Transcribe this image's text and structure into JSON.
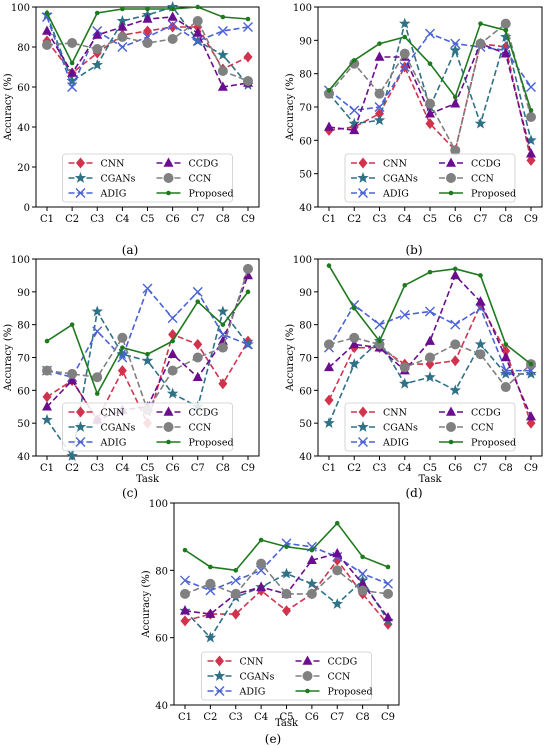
{
  "chart_data": [
    {
      "type": "line",
      "panel_label": "(a)",
      "xlabel": "",
      "ylabel": "Accuracy (%)",
      "ylim": [
        0,
        100
      ],
      "yticks": [
        0,
        20,
        40,
        60,
        80,
        100
      ],
      "categories": [
        "C1",
        "C2",
        "C3",
        "C4",
        "C5",
        "C6",
        "C7",
        "C8",
        "C9"
      ],
      "legend_position": "lower-center",
      "series": [
        {
          "name": "CNN",
          "values": [
            83,
            67,
            77,
            86,
            88,
            90,
            90,
            69,
            75
          ]
        },
        {
          "name": "CGANs",
          "values": [
            96,
            63,
            71,
            93,
            96,
            100,
            83,
            76,
            61
          ]
        },
        {
          "name": "ADIG",
          "values": [
            95,
            60,
            88,
            80,
            85,
            91,
            83,
            88,
            90
          ]
        },
        {
          "name": "CCDG",
          "values": [
            88,
            67,
            86,
            90,
            94,
            95,
            87,
            60,
            62
          ]
        },
        {
          "name": "CCN",
          "values": [
            81,
            82,
            79,
            85,
            82,
            84,
            93,
            68,
            63
          ]
        },
        {
          "name": "Proposed",
          "values": [
            97,
            72,
            97,
            99,
            99,
            99,
            100,
            95,
            94
          ]
        }
      ]
    },
    {
      "type": "line",
      "panel_label": "(b)",
      "xlabel": "",
      "ylabel": "Accuracy (%)",
      "ylim": [
        40,
        100
      ],
      "yticks": [
        40,
        50,
        60,
        70,
        80,
        90,
        100
      ],
      "categories": [
        "C1",
        "C2",
        "C3",
        "C4",
        "C5",
        "C6",
        "C7",
        "C8",
        "C9"
      ],
      "legend_position": "lower-center",
      "series": [
        {
          "name": "CNN",
          "values": [
            63,
            64,
            68,
            82,
            65,
            57,
            89,
            88,
            54
          ]
        },
        {
          "name": "CGANs",
          "values": [
            74,
            65,
            66,
            95,
            70,
            87,
            65,
            91,
            60
          ]
        },
        {
          "name": "ADIG",
          "values": [
            75,
            69,
            70,
            82,
            92,
            89,
            88,
            87,
            76
          ]
        },
        {
          "name": "CCDG",
          "values": [
            64,
            63,
            85,
            85,
            68,
            71,
            89,
            86,
            56
          ]
        },
        {
          "name": "CCN",
          "values": [
            74,
            83,
            74,
            86,
            71,
            57,
            89,
            95,
            67
          ]
        },
        {
          "name": "Proposed",
          "values": [
            75,
            84,
            89,
            91,
            83,
            73,
            95,
            93,
            69
          ]
        }
      ]
    },
    {
      "type": "line",
      "panel_label": "(c)",
      "xlabel": "Task",
      "ylabel": "Accuracy (%)",
      "ylim": [
        40,
        100
      ],
      "yticks": [
        40,
        50,
        60,
        70,
        80,
        90,
        100
      ],
      "categories": [
        "C1",
        "C2",
        "C3",
        "C4",
        "C5",
        "C6",
        "C7",
        "C8",
        "C9"
      ],
      "legend_position": "lower-center",
      "series": [
        {
          "name": "CNN",
          "values": [
            58,
            63,
            51,
            66,
            50,
            77,
            74,
            62,
            75
          ]
        },
        {
          "name": "CGANs",
          "values": [
            51,
            40,
            84,
            71,
            69,
            59,
            55,
            84,
            74
          ]
        },
        {
          "name": "ADIG",
          "values": [
            66,
            64,
            78,
            70,
            91,
            82,
            90,
            77,
            74
          ]
        },
        {
          "name": "CCDG",
          "values": [
            55,
            63,
            51,
            54,
            55,
            71,
            64,
            75,
            95
          ]
        },
        {
          "name": "CCN",
          "values": [
            66,
            65,
            64,
            76,
            54,
            66,
            70,
            73,
            97
          ]
        },
        {
          "name": "Proposed",
          "values": [
            75,
            80,
            59,
            73,
            71,
            75,
            87,
            80,
            90
          ]
        }
      ]
    },
    {
      "type": "line",
      "panel_label": "(d)",
      "xlabel": "Task",
      "ylabel": "Accuracy (%)",
      "ylim": [
        40,
        100
      ],
      "yticks": [
        40,
        50,
        60,
        70,
        80,
        90,
        100
      ],
      "categories": [
        "C1",
        "C2",
        "C3",
        "C4",
        "C5",
        "C6",
        "C7",
        "C8",
        "C9"
      ],
      "legend_position": "lower-center",
      "series": [
        {
          "name": "CNN",
          "values": [
            57,
            73,
            73,
            68,
            68,
            69,
            86,
            72,
            50
          ]
        },
        {
          "name": "CGANs",
          "values": [
            50,
            68,
            75,
            62,
            64,
            60,
            74,
            65,
            65
          ]
        },
        {
          "name": "ADIG",
          "values": [
            73,
            86,
            80,
            83,
            84,
            80,
            85,
            66,
            66
          ]
        },
        {
          "name": "CCDG",
          "values": [
            67,
            74,
            73,
            66,
            75,
            95,
            87,
            70,
            52
          ]
        },
        {
          "name": "CCN",
          "values": [
            74,
            76,
            74,
            67,
            70,
            74,
            71,
            61,
            68
          ]
        },
        {
          "name": "Proposed",
          "values": [
            98,
            85,
            75,
            92,
            96,
            97,
            95,
            74,
            68
          ]
        }
      ]
    },
    {
      "type": "line",
      "panel_label": "(e)",
      "xlabel": "Task",
      "ylabel": "Accuracy (%)",
      "ylim": [
        40,
        100
      ],
      "yticks": [
        40,
        60,
        80,
        100
      ],
      "categories": [
        "C1",
        "C2",
        "C3",
        "C4",
        "C5",
        "C6",
        "C7",
        "C8",
        "C9"
      ],
      "legend_position": "lower-center",
      "series": [
        {
          "name": "CNN",
          "values": [
            65,
            67,
            67,
            74,
            68,
            73,
            83,
            73,
            64
          ]
        },
        {
          "name": "CGANs",
          "values": [
            68,
            60,
            72,
            75,
            79,
            76,
            70,
            77,
            65
          ]
        },
        {
          "name": "ADIG",
          "values": [
            77,
            74,
            77,
            80,
            88,
            87,
            84,
            79,
            76
          ]
        },
        {
          "name": "CCDG",
          "values": [
            68,
            67,
            73,
            75,
            73,
            83,
            85,
            76,
            66
          ]
        },
        {
          "name": "CCN",
          "values": [
            73,
            76,
            73,
            82,
            73,
            73,
            80,
            74,
            73
          ]
        },
        {
          "name": "Proposed",
          "values": [
            86,
            81,
            80,
            89,
            87,
            86,
            94,
            84,
            81
          ]
        }
      ]
    }
  ],
  "series_styles": {
    "CNN": {
      "color": "#d1334d",
      "marker": "diamond"
    },
    "CGANs": {
      "color": "#2f7186",
      "marker": "star"
    },
    "ADIG": {
      "color": "#4a62d6",
      "marker": "x"
    },
    "CCDG": {
      "color": "#6a0d8f",
      "marker": "triangle"
    },
    "CCN": {
      "color": "#808080",
      "marker": "circle"
    },
    "Proposed": {
      "color": "#1f7a1f",
      "marker": "point"
    }
  }
}
